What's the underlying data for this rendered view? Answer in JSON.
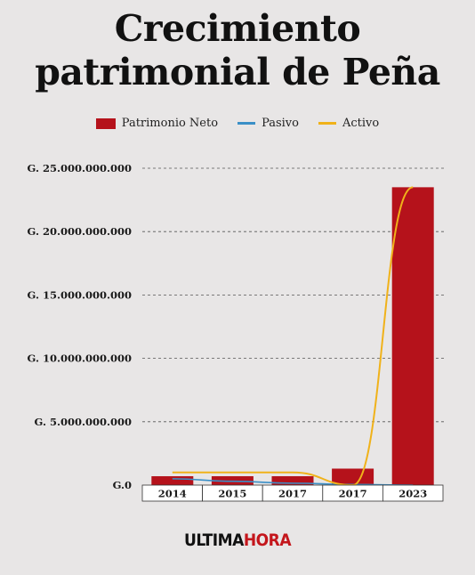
{
  "title_line1": "Crecimiento",
  "title_line2": "patrimonial de Peña",
  "legend": [
    {
      "label": "Patrimonio Neto",
      "kind": "bar",
      "color": "#b5121b"
    },
    {
      "label": "Pasivo",
      "kind": "line",
      "color": "#3a8fc7"
    },
    {
      "label": "Activo",
      "kind": "line",
      "color": "#f0b21a"
    }
  ],
  "logo": {
    "part1": "ULTIMA",
    "part2": "HORA"
  },
  "chart_data": {
    "type": "bar",
    "title": "Crecimiento patrimonial de Peña",
    "categories": [
      "2014",
      "2015",
      "2017",
      "2017",
      "2023"
    ],
    "ylim": [
      0,
      25000000000
    ],
    "yticks": [
      0,
      5000000000,
      10000000000,
      15000000000,
      20000000000,
      25000000000
    ],
    "ytick_labels": [
      "G.0",
      "G. 5.000.000.000",
      "G. 10.000.000.000",
      "G. 15.000.000.000",
      "G. 20.000.000.000",
      "G. 25.000.000.000"
    ],
    "grid": true,
    "legend_position": "top",
    "series": [
      {
        "name": "Patrimonio Neto",
        "type": "bar",
        "color": "#b5121b",
        "values": [
          700000000,
          700000000,
          700000000,
          1300000000,
          23500000000
        ]
      },
      {
        "name": "Pasivo",
        "type": "line",
        "color": "#3a8fc7",
        "values": [
          500000000,
          300000000,
          150000000,
          50000000,
          0
        ]
      },
      {
        "name": "Activo",
        "type": "line",
        "color": "#f0b21a",
        "values": [
          1000000000,
          1000000000,
          1000000000,
          0,
          23500000000
        ]
      }
    ]
  }
}
